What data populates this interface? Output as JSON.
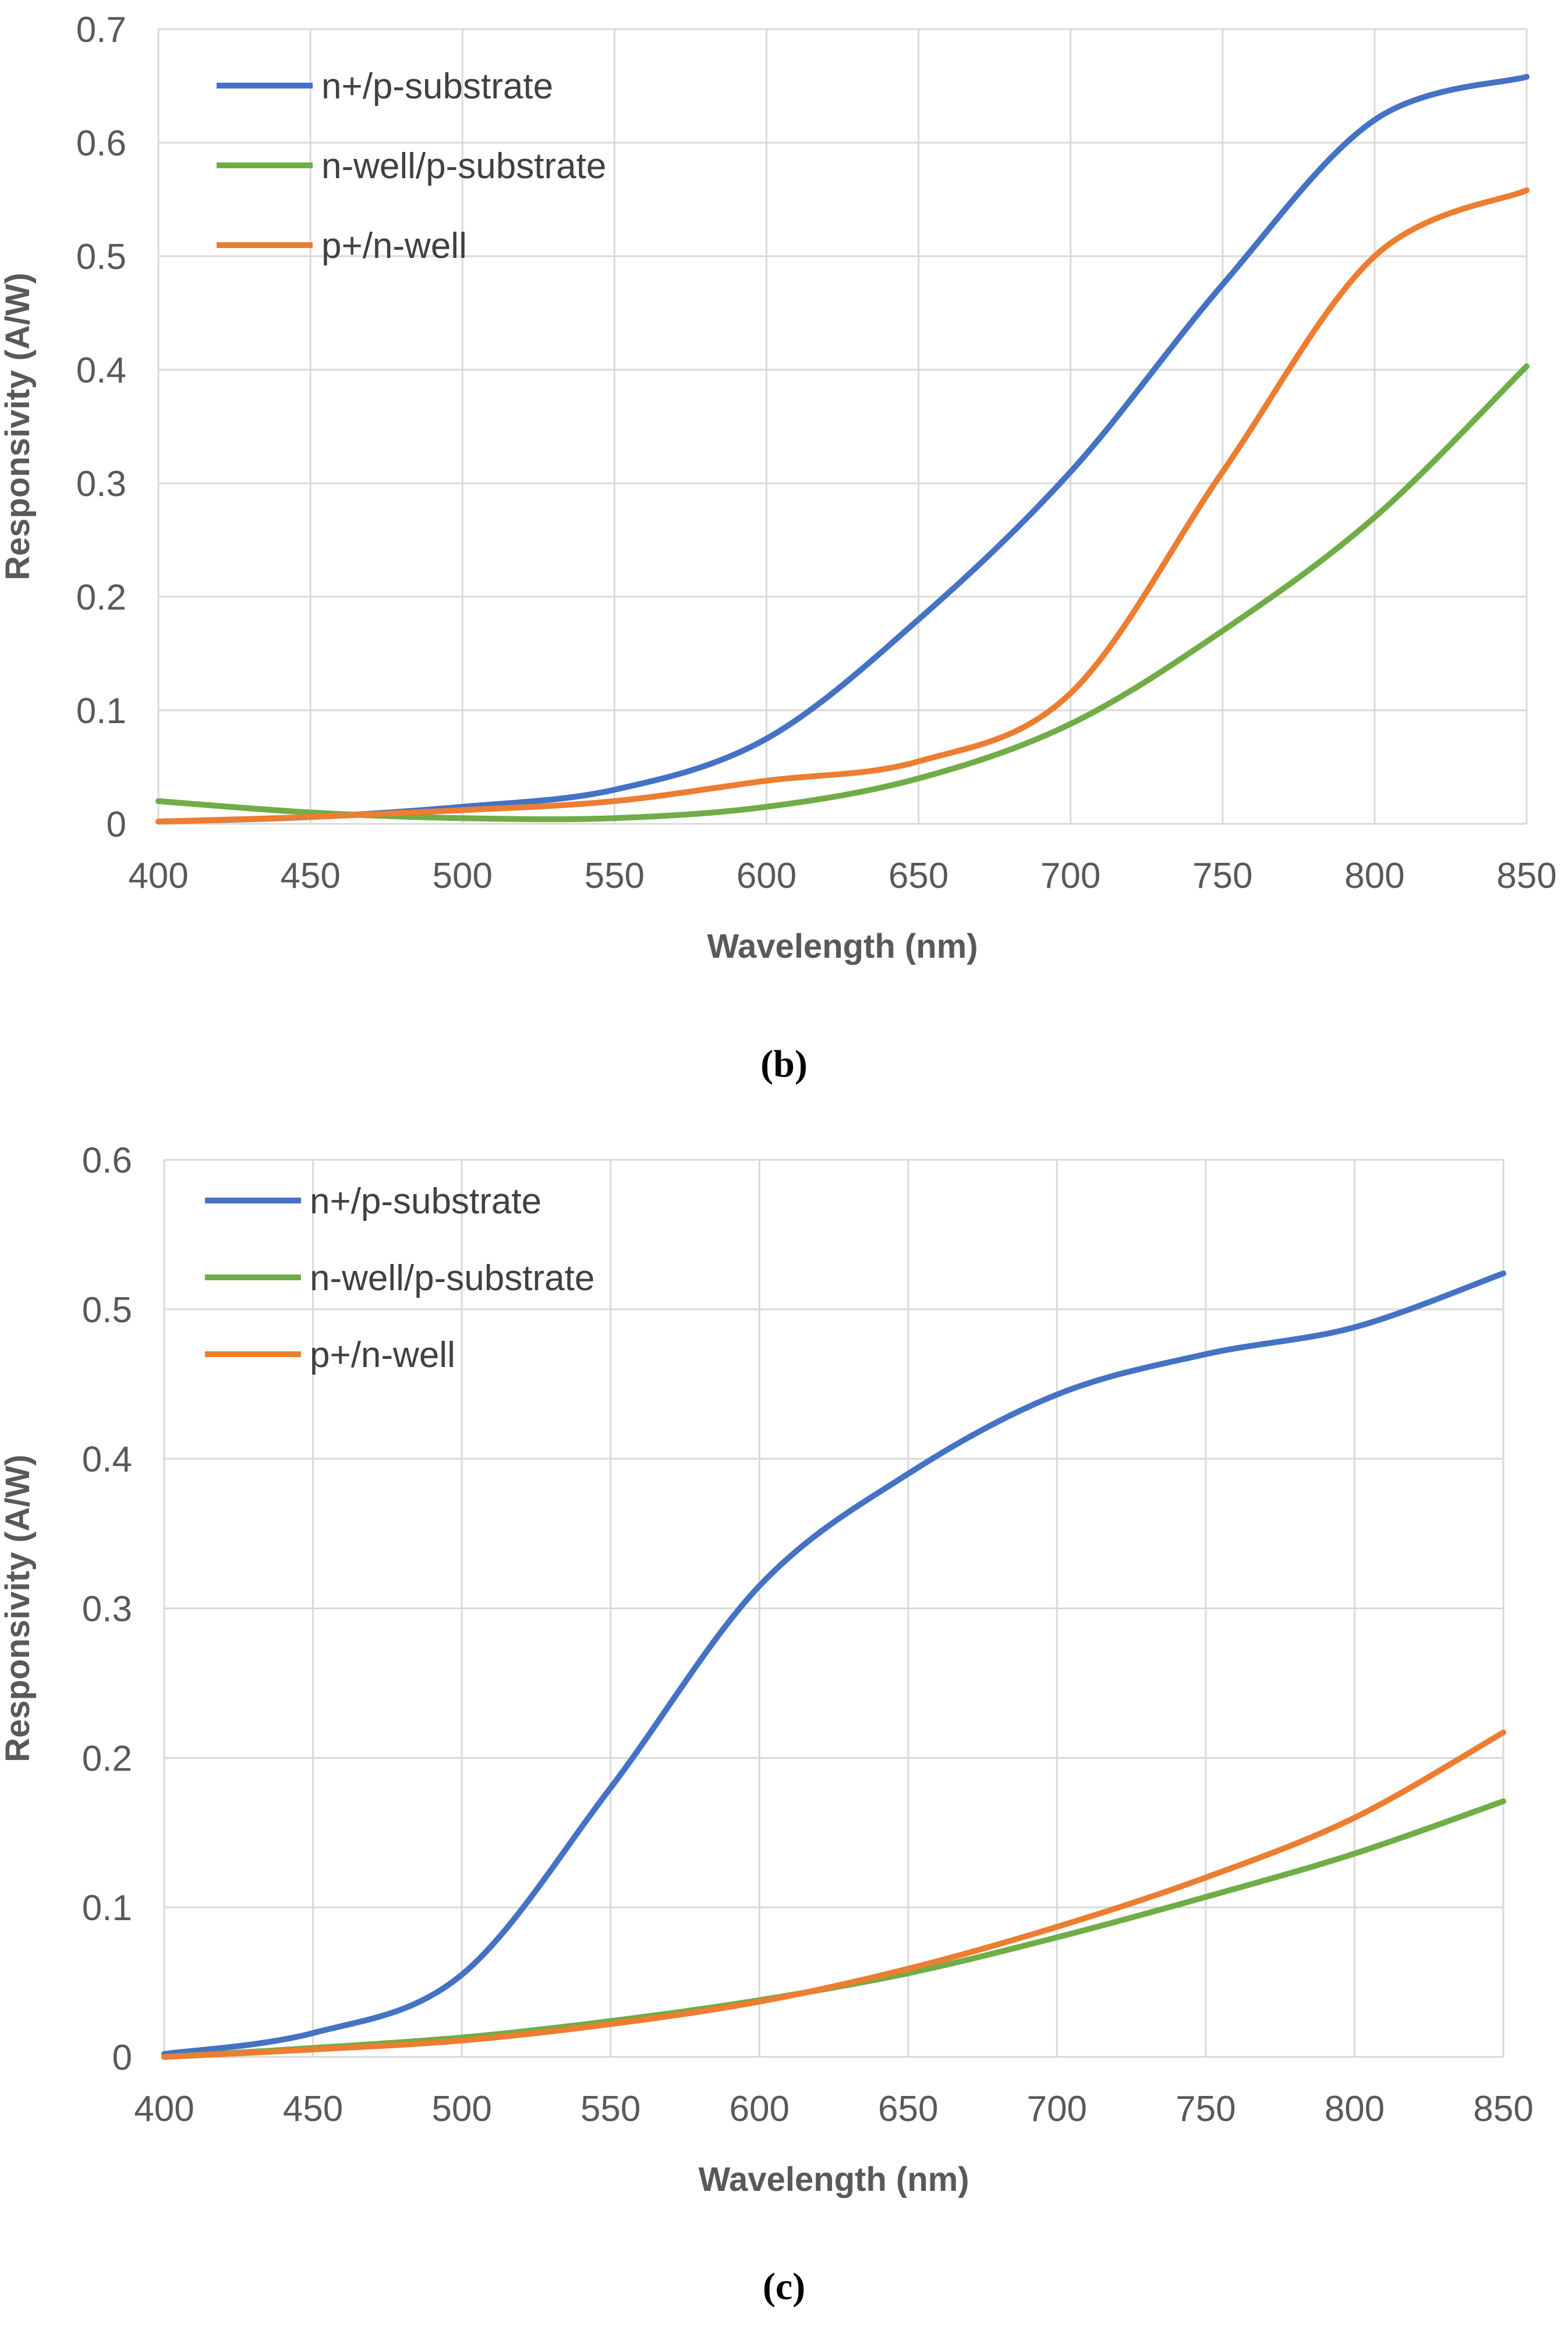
{
  "chart_data": [
    {
      "type": "line",
      "caption": "(b)",
      "xlabel": "Wavelength (nm)",
      "ylabel": "Responsivity (A/W)",
      "xlim": [
        400,
        850
      ],
      "ylim": [
        0,
        0.7
      ],
      "x_ticks": [
        "400",
        "450",
        "500",
        "550",
        "600",
        "650",
        "700",
        "750",
        "800",
        "850"
      ],
      "y_ticks": [
        "0",
        "0.1",
        "0.2",
        "0.3",
        "0.4",
        "0.5",
        "0.6",
        "0.7"
      ],
      "grid": true,
      "legend_position": "top-left",
      "x": [
        400,
        450,
        500,
        550,
        600,
        650,
        700,
        750,
        800,
        850
      ],
      "series": [
        {
          "name": "n+/p-substrate",
          "color": "#4472C4",
          "values": [
            0.002,
            0.006,
            0.015,
            0.03,
            0.075,
            0.18,
            0.31,
            0.475,
            0.62,
            0.658
          ]
        },
        {
          "name": "n-well/p-substrate",
          "color": "#70AD47",
          "values": [
            0.02,
            0.01,
            0.005,
            0.005,
            0.015,
            0.04,
            0.088,
            0.17,
            0.27,
            0.403
          ]
        },
        {
          "name": "p+/n-well",
          "color": "#ED7D31",
          "values": [
            0.002,
            0.006,
            0.012,
            0.02,
            0.038,
            0.055,
            0.115,
            0.31,
            0.5,
            0.558
          ]
        }
      ]
    },
    {
      "type": "line",
      "caption": "(c)",
      "xlabel": "Wavelength (nm)",
      "ylabel": "Responsivity (A/W)",
      "xlim": [
        400,
        850
      ],
      "ylim": [
        0,
        0.6
      ],
      "x_ticks": [
        "400",
        "450",
        "500",
        "550",
        "600",
        "650",
        "700",
        "750",
        "800",
        "850"
      ],
      "y_ticks": [
        "0",
        "0.1",
        "0.2",
        "0.3",
        "0.4",
        "0.5",
        "0.6"
      ],
      "grid": true,
      "legend_position": "top-left",
      "x": [
        400,
        450,
        500,
        550,
        600,
        650,
        700,
        750,
        800,
        850
      ],
      "series": [
        {
          "name": "n+/p-substrate",
          "color": "#4472C4",
          "values": [
            0.002,
            0.016,
            0.055,
            0.18,
            0.315,
            0.39,
            0.443,
            0.47,
            0.488,
            0.524
          ]
        },
        {
          "name": "n-well/p-substrate",
          "color": "#70AD47",
          "values": [
            0.0,
            0.006,
            0.013,
            0.024,
            0.038,
            0.056,
            0.08,
            0.107,
            0.136,
            0.171
          ]
        },
        {
          "name": "p+/n-well",
          "color": "#ED7D31",
          "values": [
            0.0,
            0.005,
            0.011,
            0.022,
            0.037,
            0.059,
            0.087,
            0.12,
            0.16,
            0.217
          ]
        }
      ]
    }
  ]
}
